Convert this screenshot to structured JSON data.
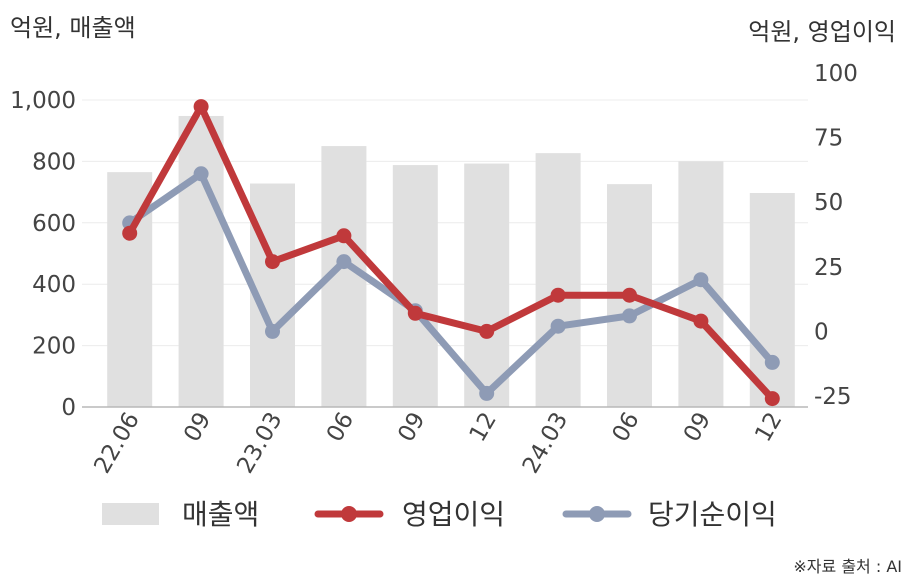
{
  "chart_data": {
    "type": "bar+line",
    "categories": [
      "22.06",
      "09",
      "23.03",
      "06",
      "09",
      "12",
      "24.03",
      "06",
      "09",
      "12"
    ],
    "left_axis": {
      "unit": "억원, 매출액",
      "ylim": [
        0,
        1000
      ],
      "ticks": [
        "1,000",
        "800",
        "600",
        "400",
        "200",
        "0"
      ]
    },
    "right_axis": {
      "unit": "억원, 영업이익",
      "ylim": [
        -25,
        100
      ],
      "ticks": [
        "100",
        "75",
        "50",
        "25",
        "0",
        "-25"
      ]
    },
    "series": [
      {
        "name": "매출액",
        "kind": "bar",
        "axis": "left",
        "color": "#e0e0e0",
        "values": [
          765,
          948,
          728,
          850,
          788,
          793,
          827,
          726,
          800,
          697
        ]
      },
      {
        "name": "영업이익",
        "kind": "line",
        "axis": "right",
        "color": "#c0393b",
        "values": [
          38,
          87,
          27,
          37,
          7,
          0,
          14,
          14,
          4,
          -26
        ]
      },
      {
        "name": "당기순이익",
        "kind": "line",
        "axis": "right",
        "color": "#8e9bb5",
        "values": [
          42,
          61,
          0,
          27,
          8,
          -24,
          2,
          6,
          20,
          -12
        ]
      }
    ],
    "grid": true,
    "legend_position": "bottom"
  },
  "source_note": "※자료 출처 : AI"
}
